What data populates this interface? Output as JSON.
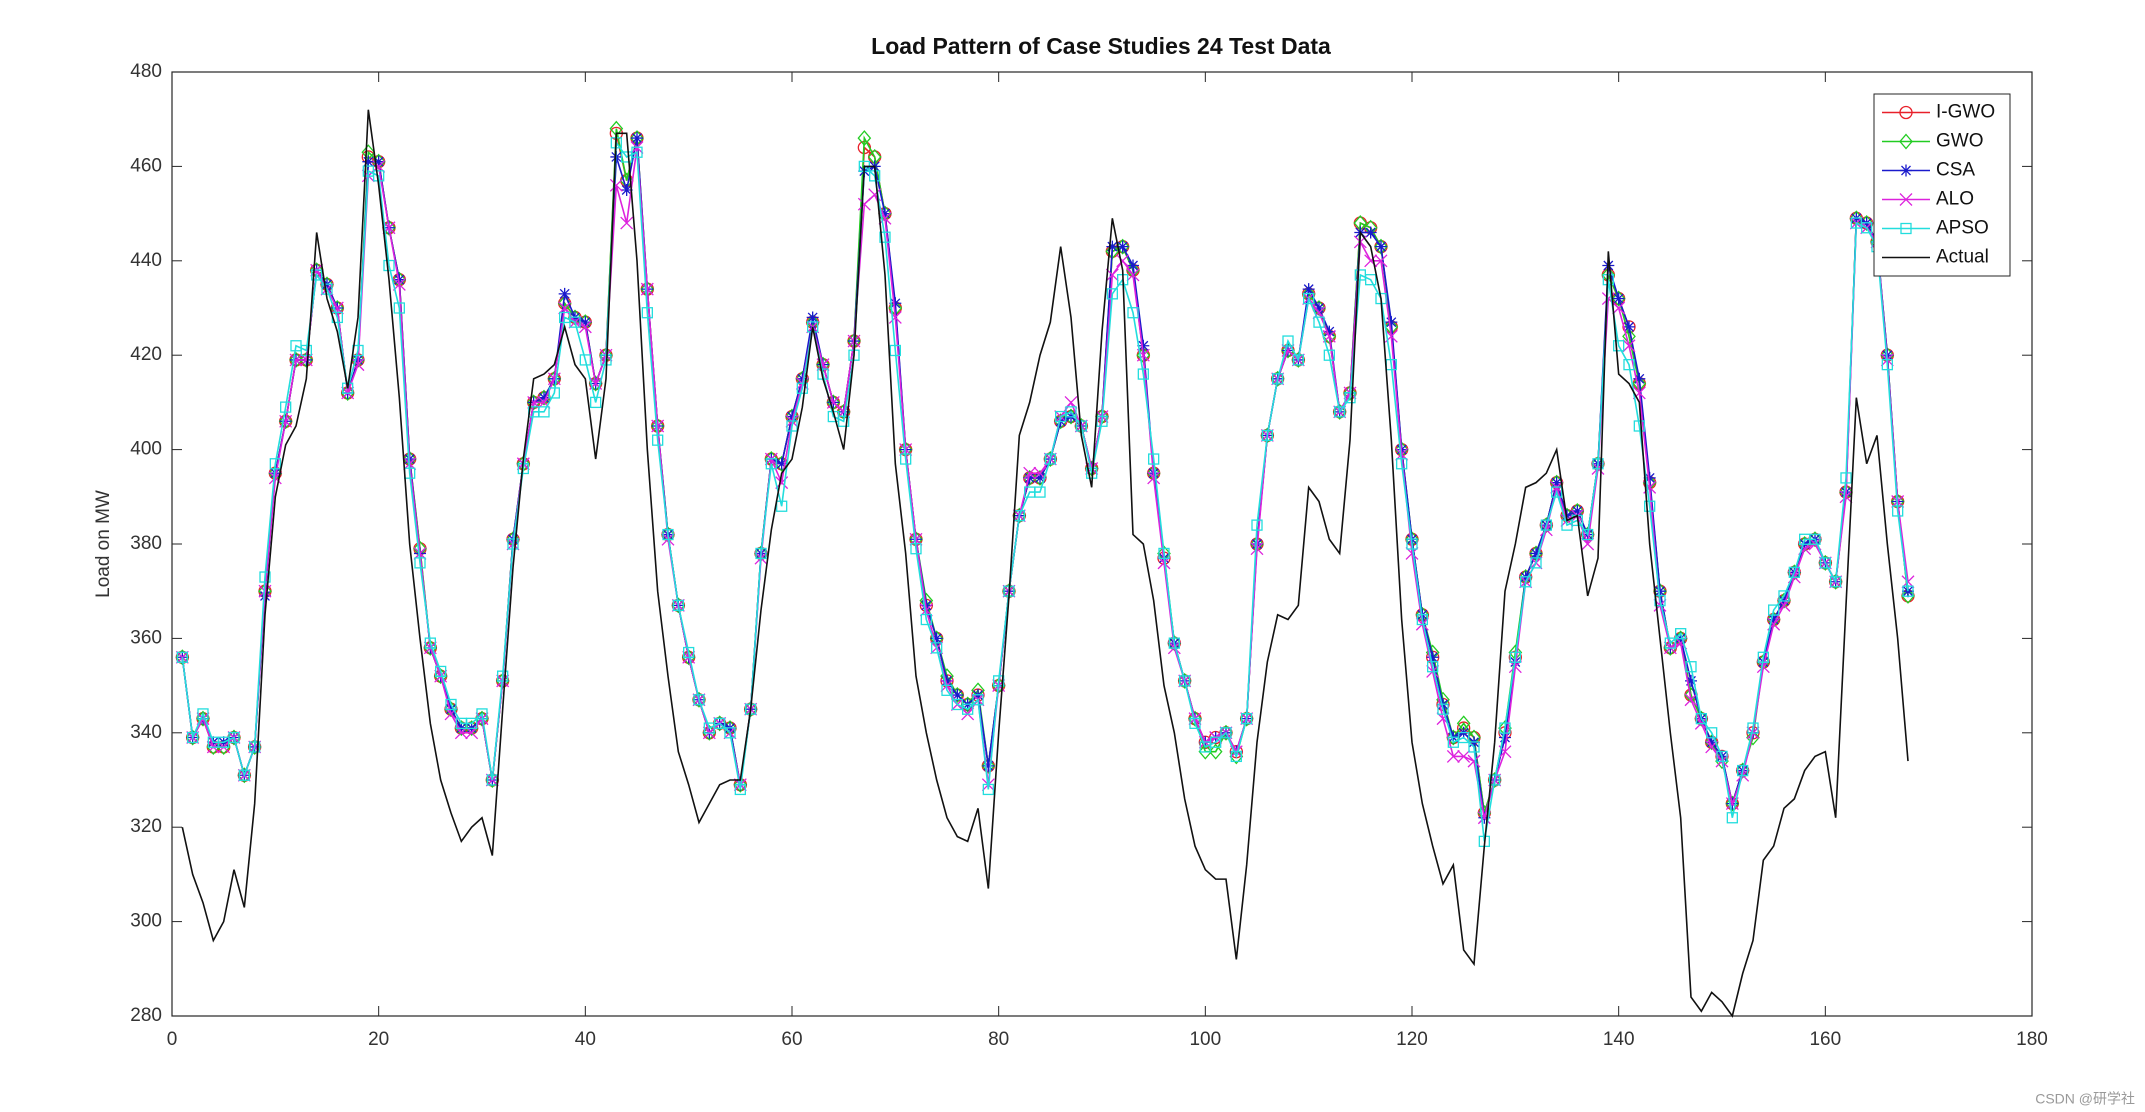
{
  "chart_data": {
    "type": "line",
    "title": "Load Pattern of Case Studies 24 Test Data",
    "y_label": "Load on MW",
    "watermark": "CSDN @研学社",
    "xlim": [
      0,
      180
    ],
    "xticks": [
      0,
      20,
      40,
      60,
      80,
      100,
      120,
      140,
      160,
      180
    ],
    "ylim": [
      280,
      480
    ],
    "yticks": [
      280,
      300,
      320,
      340,
      360,
      380,
      400,
      420,
      440,
      460,
      480
    ],
    "legend": "upper right",
    "x": [
      1,
      2,
      3,
      4,
      5,
      6,
      7,
      8,
      9,
      10,
      11,
      12,
      13,
      14,
      15,
      16,
      17,
      18,
      19,
      20,
      21,
      22,
      23,
      24,
      25,
      26,
      27,
      28,
      29,
      30,
      31,
      32,
      33,
      34,
      35,
      36,
      37,
      38,
      39,
      40,
      41,
      42,
      43,
      44,
      45,
      46,
      47,
      48,
      49,
      50,
      51,
      52,
      53,
      54,
      55,
      56,
      57,
      58,
      59,
      60,
      61,
      62,
      63,
      64,
      65,
      66,
      67,
      68,
      69,
      70,
      71,
      72,
      73,
      74,
      75,
      76,
      77,
      78,
      79,
      80,
      81,
      82,
      83,
      84,
      85,
      86,
      87,
      88,
      89,
      90,
      91,
      92,
      93,
      94,
      95,
      96,
      97,
      98,
      99,
      100,
      101,
      102,
      103,
      104,
      105,
      106,
      107,
      108,
      109,
      110,
      111,
      112,
      113,
      114,
      115,
      116,
      117,
      118,
      119,
      120,
      121,
      122,
      123,
      124,
      125,
      126,
      127,
      128,
      129,
      130,
      131,
      132,
      133,
      134,
      135,
      136,
      137,
      138,
      139,
      140,
      141,
      142,
      143,
      144,
      145,
      146,
      147,
      148,
      149,
      150,
      151,
      152,
      153,
      154,
      155,
      156,
      157,
      158,
      159,
      160,
      161,
      162,
      163,
      164,
      165,
      166,
      167,
      168
    ],
    "series": [
      {
        "name": "I-GWO",
        "color": "#e8202a",
        "marker": "circle",
        "values": [
          356,
          339,
          343,
          337,
          337,
          339,
          331,
          337,
          370,
          395,
          406,
          419,
          419,
          438,
          435,
          430,
          412,
          419,
          462,
          461,
          447,
          436,
          398,
          379,
          358,
          352,
          345,
          341,
          341,
          343,
          330,
          351,
          381,
          397,
          410,
          411,
          415,
          431,
          428,
          427,
          414,
          420,
          467,
          457,
          466,
          434,
          405,
          382,
          367,
          356,
          347,
          340,
          342,
          341,
          329,
          345,
          378,
          398,
          397,
          407,
          415,
          427,
          418,
          410,
          408,
          423,
          464,
          462,
          450,
          430,
          400,
          381,
          367,
          360,
          351,
          348,
          346,
          348,
          333,
          350,
          370,
          386,
          394,
          394,
          398,
          406,
          407,
          405,
          396,
          407,
          442,
          443,
          438,
          420,
          395,
          377,
          359,
          351,
          343,
          338,
          339,
          340,
          336,
          343,
          380,
          403,
          415,
          421,
          419,
          433,
          430,
          424,
          408,
          412,
          448,
          447,
          443,
          426,
          400,
          381,
          365,
          356,
          346,
          339,
          341,
          339,
          323,
          330,
          340,
          356,
          373,
          378,
          384,
          393,
          386,
          387,
          382,
          397,
          437,
          432,
          426,
          414,
          393,
          370,
          358,
          360,
          348,
          343,
          338,
          335,
          325,
          332,
          340,
          355,
          364,
          368,
          374,
          380,
          381,
          376,
          372,
          391,
          449,
          448,
          444,
          420,
          389,
          369
        ]
      },
      {
        "name": "GWO",
        "color": "#22cc22",
        "marker": "diamond",
        "values": [
          356,
          339,
          343,
          337,
          337,
          339,
          331,
          337,
          370,
          395,
          406,
          419,
          419,
          438,
          435,
          430,
          412,
          419,
          463,
          461,
          447,
          436,
          398,
          379,
          358,
          352,
          345,
          341,
          341,
          343,
          330,
          351,
          381,
          397,
          410,
          411,
          415,
          431,
          428,
          427,
          414,
          420,
          468,
          457,
          466,
          434,
          405,
          382,
          367,
          356,
          347,
          340,
          342,
          341,
          329,
          345,
          378,
          398,
          397,
          407,
          415,
          427,
          418,
          410,
          408,
          423,
          466,
          462,
          450,
          430,
          400,
          381,
          368,
          360,
          352,
          348,
          346,
          349,
          333,
          350,
          370,
          386,
          394,
          394,
          398,
          406,
          407,
          405,
          396,
          407,
          442,
          443,
          438,
          420,
          395,
          378,
          359,
          351,
          343,
          336,
          336,
          340,
          335,
          343,
          380,
          403,
          415,
          421,
          419,
          433,
          430,
          424,
          408,
          412,
          448,
          447,
          443,
          426,
          400,
          381,
          365,
          357,
          347,
          339,
          342,
          339,
          323,
          330,
          341,
          357,
          373,
          378,
          384,
          393,
          386,
          387,
          382,
          397,
          437,
          432,
          424,
          414,
          393,
          370,
          358,
          360,
          348,
          343,
          338,
          334,
          325,
          332,
          339,
          355,
          364,
          368,
          374,
          380,
          381,
          376,
          372,
          391,
          449,
          448,
          444,
          420,
          389,
          369
        ]
      },
      {
        "name": "CSA",
        "color": "#1a1acc",
        "marker": "asterisk",
        "values": [
          356,
          339,
          343,
          338,
          338,
          339,
          331,
          337,
          369,
          395,
          406,
          419,
          419,
          438,
          435,
          430,
          412,
          419,
          461,
          461,
          447,
          436,
          398,
          378,
          358,
          352,
          345,
          341,
          341,
          343,
          330,
          351,
          381,
          397,
          410,
          411,
          415,
          433,
          428,
          427,
          414,
          420,
          462,
          455,
          466,
          434,
          405,
          382,
          367,
          356,
          347,
          340,
          342,
          341,
          329,
          345,
          378,
          398,
          397,
          407,
          415,
          428,
          418,
          410,
          408,
          423,
          459,
          460,
          450,
          431,
          400,
          381,
          367,
          360,
          351,
          348,
          346,
          348,
          333,
          350,
          370,
          386,
          394,
          394,
          398,
          406,
          407,
          405,
          396,
          407,
          443,
          443,
          439,
          422,
          395,
          377,
          359,
          351,
          343,
          338,
          339,
          340,
          336,
          343,
          380,
          403,
          415,
          421,
          419,
          434,
          430,
          425,
          408,
          412,
          446,
          446,
          443,
          427,
          400,
          381,
          365,
          356,
          346,
          339,
          340,
          338,
          322,
          330,
          339,
          355,
          373,
          378,
          384,
          393,
          386,
          387,
          382,
          397,
          439,
          432,
          426,
          415,
          394,
          370,
          358,
          360,
          351,
          343,
          338,
          335,
          325,
          332,
          340,
          355,
          364,
          368,
          374,
          380,
          381,
          376,
          372,
          391,
          449,
          448,
          444,
          420,
          389,
          370
        ]
      },
      {
        "name": "ALO",
        "color": "#dd22dd",
        "marker": "x",
        "values": [
          356,
          339,
          343,
          337,
          337,
          339,
          331,
          337,
          370,
          394,
          406,
          419,
          419,
          438,
          434,
          430,
          412,
          418,
          458,
          460,
          447,
          435,
          397,
          378,
          358,
          352,
          344,
          340,
          340,
          343,
          330,
          351,
          380,
          397,
          410,
          410,
          415,
          430,
          427,
          426,
          414,
          420,
          456,
          448,
          464,
          434,
          405,
          381,
          367,
          356,
          347,
          340,
          342,
          340,
          329,
          345,
          377,
          398,
          393,
          406,
          414,
          426,
          418,
          410,
          408,
          423,
          452,
          454,
          449,
          428,
          400,
          381,
          366,
          358,
          350,
          346,
          344,
          347,
          329,
          350,
          370,
          386,
          395,
          395,
          398,
          407,
          410,
          405,
          396,
          407,
          437,
          440,
          437,
          420,
          394,
          376,
          358,
          351,
          343,
          338,
          339,
          340,
          336,
          343,
          379,
          403,
          415,
          421,
          419,
          432,
          429,
          424,
          408,
          412,
          444,
          440,
          440,
          424,
          399,
          378,
          363,
          353,
          343,
          335,
          335,
          334,
          322,
          330,
          336,
          354,
          372,
          376,
          383,
          392,
          385,
          386,
          380,
          396,
          432,
          430,
          422,
          412,
          392,
          367,
          358,
          359,
          347,
          342,
          337,
          334,
          325,
          331,
          340,
          354,
          363,
          367,
          373,
          379,
          380,
          376,
          372,
          390,
          448,
          447,
          444,
          419,
          389,
          372
        ]
      },
      {
        "name": "APSO",
        "color": "#22dddd",
        "marker": "square",
        "values": [
          356,
          339,
          344,
          338,
          338,
          339,
          331,
          337,
          373,
          397,
          409,
          422,
          421,
          437,
          434,
          428,
          413,
          421,
          459,
          458,
          439,
          430,
          395,
          376,
          359,
          353,
          346,
          342,
          342,
          344,
          330,
          352,
          380,
          396,
          408,
          408,
          412,
          428,
          427,
          419,
          410,
          419,
          465,
          462,
          463,
          429,
          402,
          382,
          367,
          357,
          347,
          341,
          342,
          340,
          328,
          345,
          378,
          397,
          388,
          405,
          413,
          426,
          416,
          407,
          406,
          420,
          460,
          458,
          445,
          421,
          398,
          379,
          364,
          358,
          349,
          346,
          345,
          347,
          328,
          351,
          370,
          386,
          391,
          391,
          398,
          407,
          408,
          405,
          395,
          406,
          433,
          436,
          429,
          416,
          398,
          378,
          359,
          351,
          342,
          337,
          338,
          340,
          335,
          343,
          384,
          403,
          415,
          423,
          419,
          432,
          427,
          420,
          408,
          411,
          437,
          436,
          432,
          418,
          397,
          380,
          364,
          354,
          345,
          338,
          339,
          337,
          317,
          330,
          341,
          356,
          372,
          376,
          384,
          391,
          384,
          385,
          382,
          397,
          436,
          422,
          418,
          405,
          388,
          368,
          359,
          361,
          354,
          343,
          340,
          335,
          322,
          332,
          341,
          356,
          366,
          369,
          374,
          381,
          381,
          376,
          372,
          394,
          448,
          447,
          443,
          418,
          387,
          370
        ]
      },
      {
        "name": "Actual",
        "color": "#111111",
        "marker": "none",
        "values": [
          320,
          310,
          304,
          296,
          300,
          311,
          303,
          325,
          365,
          390,
          401,
          405,
          415,
          446,
          432,
          425,
          413,
          428,
          472,
          456,
          436,
          411,
          380,
          360,
          342,
          330,
          323,
          317,
          320,
          322,
          314,
          345,
          375,
          398,
          415,
          416,
          418,
          426,
          418,
          415,
          398,
          415,
          467,
          467,
          440,
          400,
          370,
          352,
          336,
          329,
          321,
          325,
          329,
          330,
          330,
          345,
          366,
          383,
          395,
          398,
          409,
          426,
          415,
          408,
          400,
          420,
          460,
          460,
          437,
          397,
          378,
          352,
          340,
          330,
          322,
          318,
          317,
          324,
          307,
          340,
          369,
          403,
          410,
          420,
          427,
          443,
          428,
          403,
          392,
          425,
          449,
          438,
          382,
          380,
          368,
          350,
          340,
          326,
          316,
          311,
          309,
          309,
          292,
          312,
          338,
          355,
          365,
          364,
          367,
          392,
          389,
          381,
          378,
          402,
          446,
          443,
          432,
          402,
          364,
          338,
          325,
          316,
          308,
          312,
          294,
          291,
          316,
          338,
          370,
          380,
          392,
          393,
          395,
          400,
          385,
          386,
          369,
          377,
          442,
          416,
          414,
          410,
          380,
          360,
          340,
          322,
          284,
          281,
          285,
          283,
          280,
          289,
          296,
          313,
          316,
          324,
          326,
          332,
          335,
          336,
          322,
          367,
          411,
          397,
          403,
          380,
          360,
          334
        ]
      }
    ]
  }
}
